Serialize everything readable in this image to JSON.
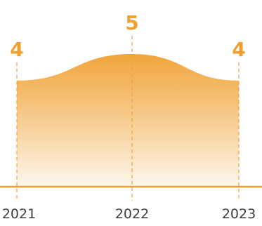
{
  "chart_data": {
    "type": "area",
    "x": [
      "2021",
      "2022",
      "2023"
    ],
    "values": [
      4,
      5,
      4
    ],
    "ylim": [
      0,
      5
    ],
    "grid": false,
    "legend": "none"
  },
  "colors": {
    "accent": "#f0a030",
    "accent_top": "#f0a030",
    "accent_bottom": "#fdf7ee",
    "label": "#f0a030",
    "tick": "#404040",
    "baseline": "#f0a030"
  }
}
